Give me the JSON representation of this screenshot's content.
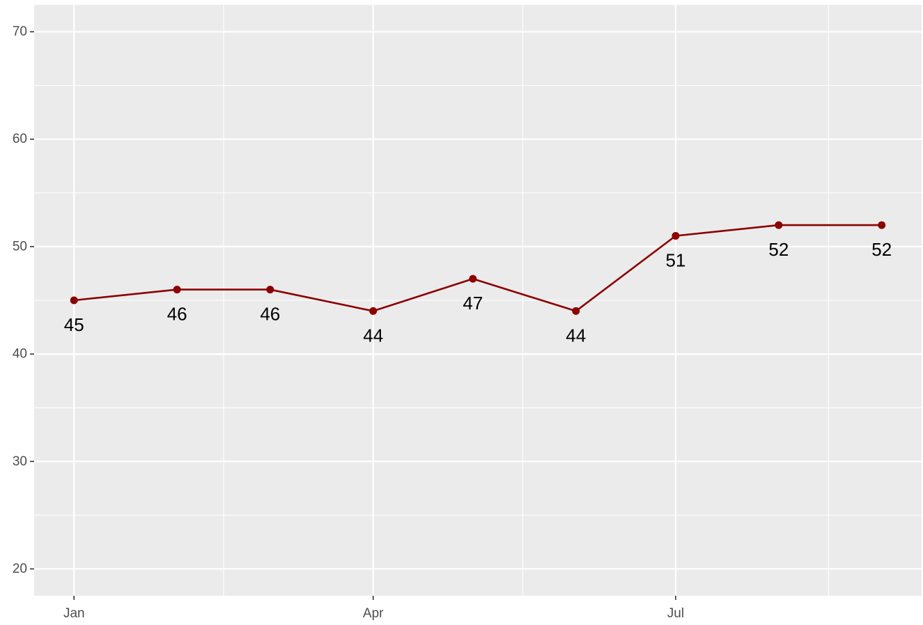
{
  "chart_data": {
    "type": "line",
    "title": "",
    "xlabel": "",
    "ylabel": "",
    "x": [
      "2023-01-01",
      "2023-02-01",
      "2023-03-01",
      "2023-04-01",
      "2023-05-01",
      "2023-06-01",
      "2023-07-01",
      "2023-08-01",
      "2023-09-01"
    ],
    "series": [
      {
        "values": [
          45,
          46,
          46,
          44,
          47,
          44,
          51,
          52,
          52
        ]
      }
    ],
    "data_labels": [
      "45",
      "46",
      "46",
      "44",
      "47",
      "44",
      "51",
      "52",
      "52"
    ],
    "x_ticks": [
      {
        "value": "2023-01-01",
        "label": "Jan"
      },
      {
        "value": "2023-04-01",
        "label": "Apr"
      },
      {
        "value": "2023-07-01",
        "label": "Jul"
      }
    ],
    "x_minor_ticks": [
      "2023-02-15",
      "2023-05-16",
      "2023-08-16"
    ],
    "y_ticks": [
      20,
      30,
      40,
      50,
      60,
      70
    ],
    "y_minor_ticks": [
      25,
      35,
      45,
      55,
      65
    ],
    "ylim": [
      17.5,
      72.5
    ],
    "xlim": [
      "2022-12-20",
      "2023-09-13"
    ],
    "grid": true,
    "legend": "none",
    "colors": {
      "line": "#8b0000",
      "panel_background": "#ebebeb",
      "grid": "#ffffff",
      "tick_text": "#4d4d4d",
      "label_text": "#000000"
    }
  }
}
